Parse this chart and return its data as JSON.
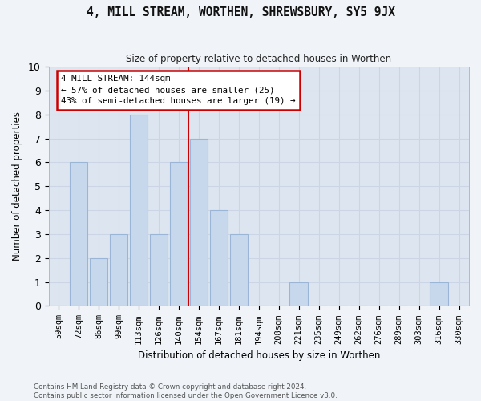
{
  "title": "4, MILL STREAM, WORTHEN, SHREWSBURY, SY5 9JX",
  "subtitle": "Size of property relative to detached houses in Worthen",
  "xlabel": "Distribution of detached houses by size in Worthen",
  "ylabel": "Number of detached properties",
  "categories": [
    "59sqm",
    "72sqm",
    "86sqm",
    "99sqm",
    "113sqm",
    "126sqm",
    "140sqm",
    "154sqm",
    "167sqm",
    "181sqm",
    "194sqm",
    "208sqm",
    "221sqm",
    "235sqm",
    "249sqm",
    "262sqm",
    "276sqm",
    "289sqm",
    "303sqm",
    "316sqm",
    "330sqm"
  ],
  "values": [
    0,
    6,
    2,
    3,
    8,
    3,
    6,
    7,
    4,
    3,
    0,
    0,
    1,
    0,
    0,
    0,
    0,
    0,
    0,
    1,
    0
  ],
  "bar_color": "#c8d8ec",
  "bar_edgecolor": "#9ab5d5",
  "highlight_index": 6,
  "highlight_color": "#cc0000",
  "annotation_line1": "4 MILL STREAM: 144sqm",
  "annotation_line2": "← 57% of detached houses are smaller (25)",
  "annotation_line3": "43% of semi-detached houses are larger (19) →",
  "annotation_box_facecolor": "#ffffff",
  "annotation_box_edgecolor": "#cc0000",
  "ylim": [
    0,
    10
  ],
  "yticks": [
    0,
    1,
    2,
    3,
    4,
    5,
    6,
    7,
    8,
    9,
    10
  ],
  "grid_color": "#ccd5e5",
  "bg_color": "#dde6f0",
  "fig_color": "#f0f4f8",
  "footnote1": "Contains HM Land Registry data © Crown copyright and database right 2024.",
  "footnote2": "Contains public sector information licensed under the Open Government Licence v3.0."
}
